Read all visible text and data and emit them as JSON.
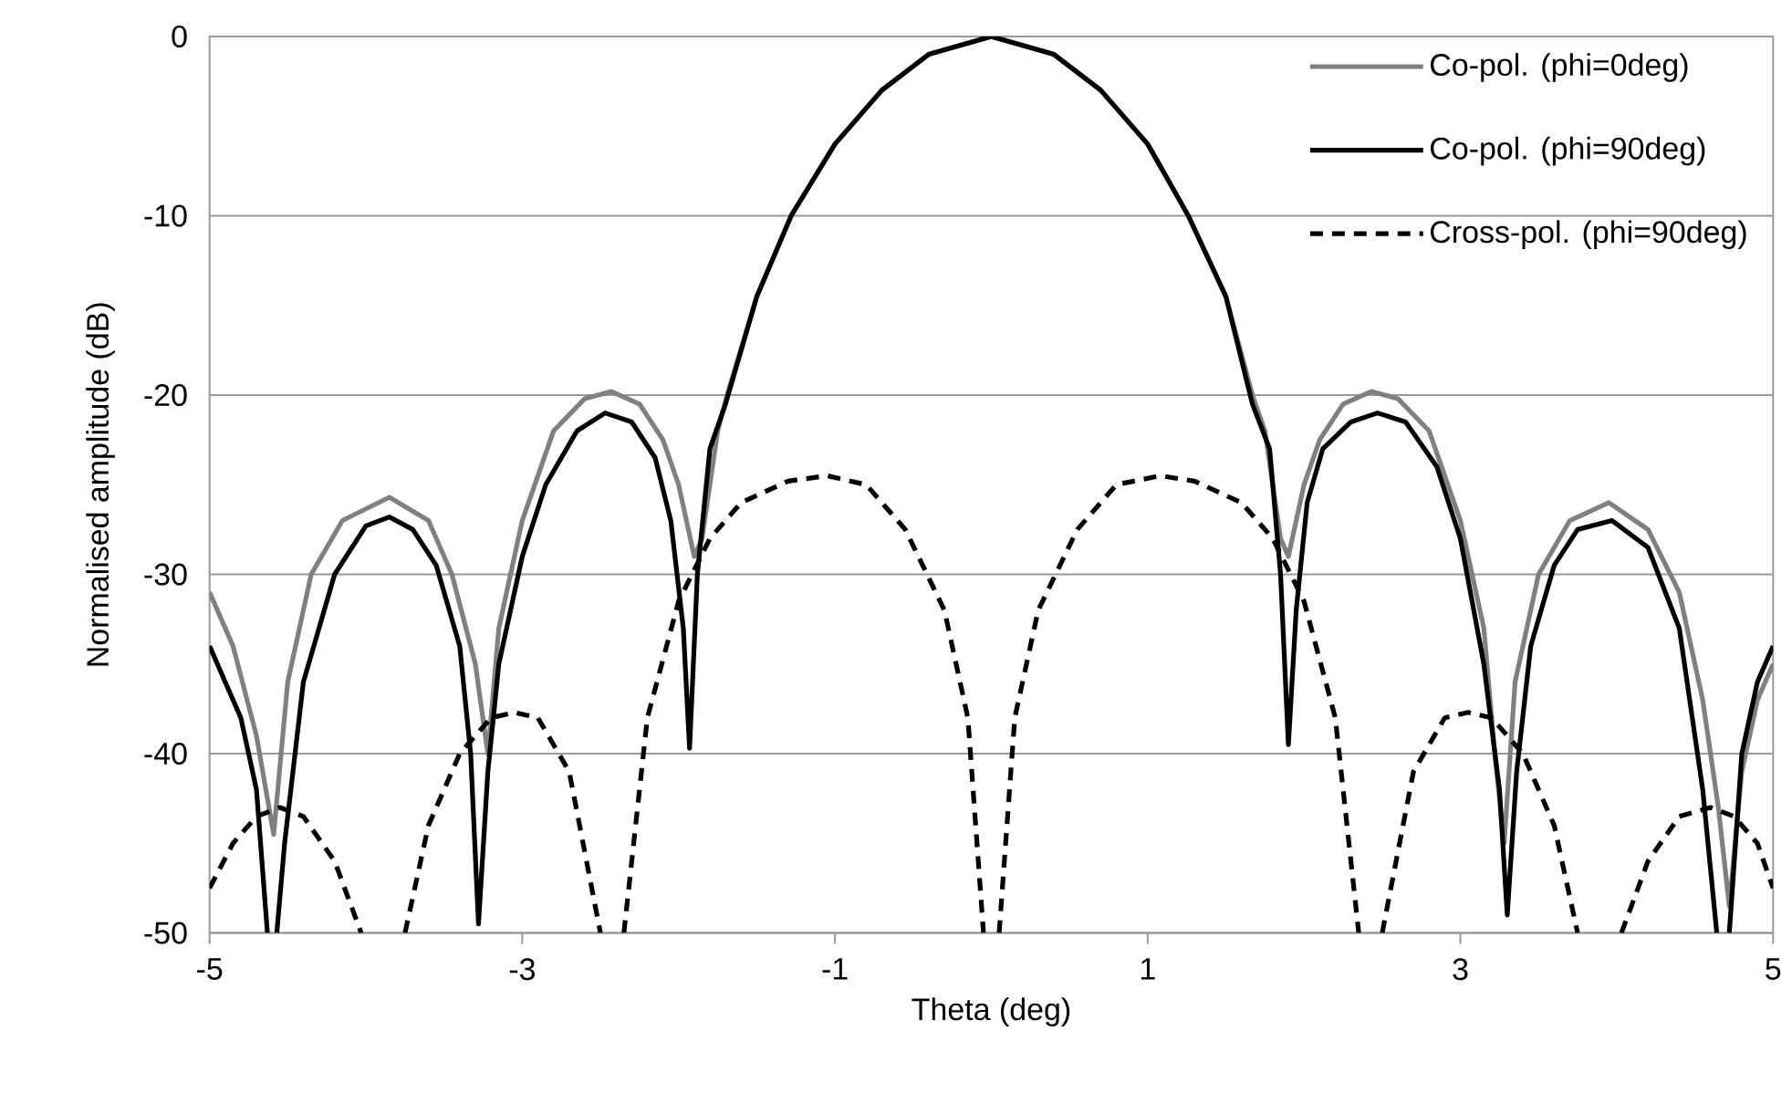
{
  "chart_data": {
    "type": "line",
    "xlabel": "Theta (deg)",
    "ylabel": "Normalised amplitude (dB)",
    "xlim": [
      -5,
      5
    ],
    "xticks": [
      -5,
      -3,
      -1,
      1,
      3,
      5
    ],
    "ylim": [
      -50,
      0
    ],
    "yticks": [
      -50,
      -40,
      -30,
      -20,
      -10,
      0
    ],
    "grid": "y",
    "legend": "top right",
    "series": [
      {
        "name": "Co-pol. (phi=0deg)",
        "color": "#808080",
        "line_style": "solid",
        "x": [
          -5,
          -4.85,
          -4.7,
          -4.59,
          -4.5,
          -4.35,
          -4.15,
          -3.85,
          -3.6,
          -3.45,
          -3.3,
          -3.22,
          -3.15,
          -3.0,
          -2.8,
          -2.6,
          -2.43,
          -2.25,
          -2.1,
          -2.0,
          -1.9,
          -1.85,
          -1.75,
          -1.69,
          -1.5,
          -1.28,
          -1.0,
          -0.7,
          -0.4,
          0,
          0.4,
          0.7,
          1.0,
          1.26,
          1.5,
          1.67,
          1.75,
          1.85,
          1.9,
          2.0,
          2.1,
          2.25,
          2.43,
          2.6,
          2.8,
          3.0,
          3.15,
          3.22,
          3.28,
          3.35,
          3.5,
          3.7,
          3.95,
          4.2,
          4.4,
          4.55,
          4.65,
          4.72,
          4.8,
          4.9,
          5
        ],
        "values": [
          -31,
          -34,
          -39,
          -44.5,
          -36,
          -30,
          -27,
          -25.7,
          -27,
          -30,
          -35,
          -40,
          -33,
          -27,
          -22,
          -20.2,
          -19.8,
          -20.5,
          -22.5,
          -25,
          -29,
          -28,
          -22,
          -20,
          -14.5,
          -10,
          -6,
          -3,
          -1,
          0,
          -1,
          -3,
          -6,
          -10,
          -14.5,
          -20,
          -22,
          -28,
          -29,
          -25,
          -22.5,
          -20.5,
          -19.8,
          -20.2,
          -22,
          -27,
          -33,
          -40,
          -45,
          -36,
          -30,
          -27,
          -26,
          -27.5,
          -31,
          -37,
          -43,
          -48.5,
          -41,
          -37,
          -35
        ]
      },
      {
        "name": "Co-pol. (phi=90deg)",
        "color": "#000000",
        "line_style": "solid",
        "x": [
          -5,
          -4.9,
          -4.8,
          -4.7,
          -4.63,
          -4.6,
          -4.57,
          -4.52,
          -4.4,
          -4.2,
          -4.0,
          -3.85,
          -3.7,
          -3.55,
          -3.4,
          -3.33,
          -3.28,
          -3.22,
          -3.15,
          -3.0,
          -2.85,
          -2.65,
          -2.47,
          -2.3,
          -2.15,
          -2.05,
          -1.97,
          -1.93,
          -1.88,
          -1.8,
          -1.7,
          -1.5,
          -1.28,
          -1.0,
          -0.7,
          -0.4,
          0,
          0.4,
          0.7,
          1.0,
          1.26,
          1.5,
          1.67,
          1.78,
          1.85,
          1.9,
          1.95,
          2.02,
          2.12,
          2.3,
          2.47,
          2.65,
          2.85,
          3.0,
          3.15,
          3.25,
          3.3,
          3.36,
          3.45,
          3.6,
          3.75,
          3.97,
          4.2,
          4.4,
          4.55,
          4.64,
          4.68,
          4.72,
          4.8,
          4.9,
          5
        ],
        "values": [
          -34,
          -36,
          -38,
          -42,
          -50,
          null,
          -50,
          -45,
          -36,
          -30,
          -27.3,
          -26.8,
          -27.5,
          -29.5,
          -34,
          -40,
          -49.5,
          -41,
          -35,
          -29,
          -25,
          -22,
          -21,
          -21.5,
          -23.5,
          -27,
          -33,
          -39.7,
          -30,
          -23,
          -20.5,
          -14.5,
          -10,
          -6,
          -3,
          -1,
          0,
          -1,
          -3,
          -6,
          -10,
          -14.5,
          -20.5,
          -23,
          -30,
          -39.5,
          -32,
          -26,
          -23,
          -21.5,
          -21,
          -21.5,
          -24,
          -28,
          -35,
          -42,
          -49,
          -41,
          -34,
          -29.5,
          -27.5,
          -27,
          -28.5,
          -33,
          -42,
          -50,
          null,
          -50,
          -40,
          -36,
          -34
        ]
      },
      {
        "name": "Cross-pol. (phi=90deg)",
        "color": "#000000",
        "line_style": "dashed",
        "x": [
          -5,
          -4.85,
          -4.7,
          -4.55,
          -4.4,
          -4.2,
          -4.03,
          -4.0,
          -3.75,
          -3.6,
          -3.4,
          -3.2,
          -3.05,
          -2.9,
          -2.7,
          -2.5,
          -2.42,
          -2.35,
          -2.2,
          -2.0,
          -1.8,
          -1.6,
          -1.3,
          -1.05,
          -0.8,
          -0.55,
          -0.3,
          -0.15,
          -0.05,
          0,
          0.05,
          0.15,
          0.3,
          0.55,
          0.8,
          1.08,
          1.3,
          1.6,
          1.8,
          2.0,
          2.2,
          2.35,
          2.42,
          2.5,
          2.7,
          2.9,
          3.05,
          3.2,
          3.4,
          3.6,
          3.75,
          4.0,
          4.03,
          4.2,
          4.4,
          4.6,
          4.75,
          4.9,
          5
        ],
        "values": [
          -47.5,
          -45,
          -43.5,
          -43,
          -43.5,
          -46,
          -50,
          null,
          -50,
          -44,
          -40,
          -38,
          -37.7,
          -38,
          -41,
          -50,
          null,
          -50,
          -38,
          -31.5,
          -28,
          -26,
          -24.8,
          -24.5,
          -25,
          -27.5,
          -32,
          -38,
          -50,
          null,
          -50,
          -38,
          -32,
          -27.5,
          -25,
          -24.5,
          -24.8,
          -26,
          -28,
          -31.5,
          -38,
          -50,
          null,
          -50,
          -41,
          -38,
          -37.7,
          -38,
          -40,
          -44,
          -50,
          null,
          -50,
          -46,
          -43.5,
          -43,
          -43.5,
          -45,
          -47.5
        ]
      }
    ]
  }
}
